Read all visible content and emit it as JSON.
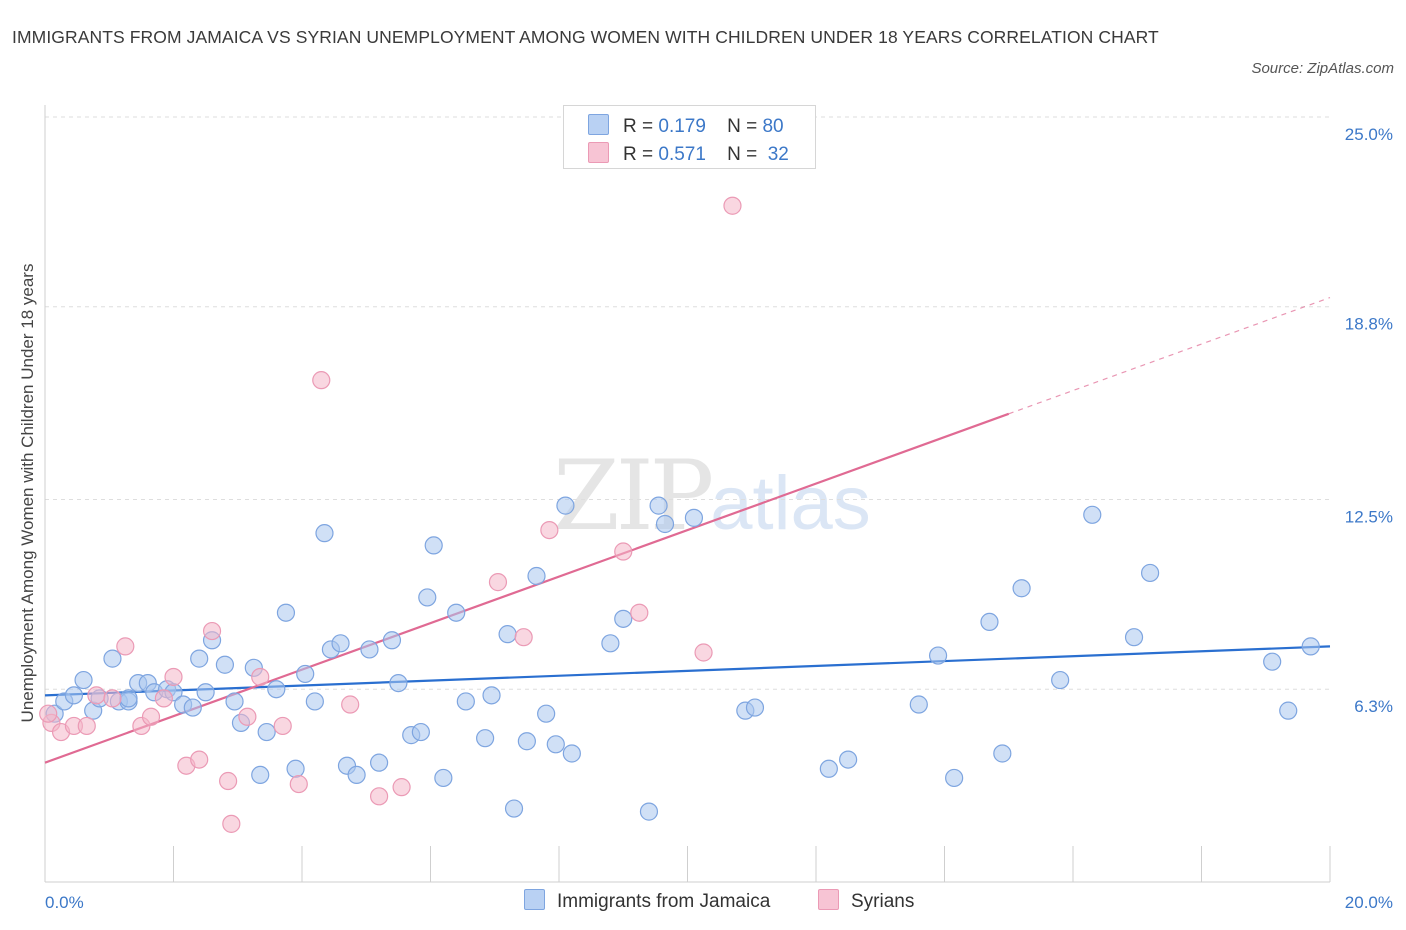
{
  "header": {
    "title": "IMMIGRANTS FROM JAMAICA VS SYRIAN UNEMPLOYMENT AMONG WOMEN WITH CHILDREN UNDER 18 YEARS CORRELATION CHART",
    "source": "Source: ZipAtlas.com"
  },
  "watermark": {
    "zip": "ZIP",
    "atlas": "atlas"
  },
  "legend": {
    "r_label": "R =",
    "n_label": "N =",
    "rows": [
      {
        "r": "0.179",
        "n": "80",
        "color": "#b9d1f3"
      },
      {
        "r": "0.571",
        "n": "32",
        "color": "#f7c4d4"
      }
    ]
  },
  "bottom_legend": [
    {
      "label": "Immigrants from Jamaica",
      "color": "#b9d1f3"
    },
    {
      "label": "Syrians",
      "color": "#f7c4d4"
    }
  ],
  "chart_data": {
    "type": "scatter",
    "title": "IMMIGRANTS FROM JAMAICA VS SYRIAN UNEMPLOYMENT AMONG WOMEN WITH CHILDREN UNDER 18 YEARS CORRELATION CHART",
    "xlabel": "",
    "ylabel": "Unemployment Among Women with Children Under 18 years",
    "xlim": [
      0,
      20
    ],
    "ylim": [
      0,
      25
    ],
    "x_tick_labels": [
      "0.0%",
      "20.0%"
    ],
    "y_tick_values": [
      6.3,
      12.5,
      18.8,
      25.0
    ],
    "y_tick_labels": [
      "6.3%",
      "12.5%",
      "18.8%",
      "25.0%"
    ],
    "grid": true,
    "series": [
      {
        "name": "Immigrants from Jamaica",
        "color": "#a9c6ee",
        "line_color": "#2a6fd0",
        "r": 0.179,
        "n": 80,
        "trend": {
          "x0": 0,
          "y0": 6.1,
          "x1": 20,
          "y1": 7.7
        },
        "points": [
          [
            0.15,
            5.5
          ],
          [
            0.3,
            5.9
          ],
          [
            0.45,
            6.1
          ],
          [
            0.6,
            6.6
          ],
          [
            0.75,
            5.6
          ],
          [
            0.85,
            6.0
          ],
          [
            1.05,
            7.3
          ],
          [
            1.15,
            5.9
          ],
          [
            1.3,
            5.9
          ],
          [
            1.45,
            6.5
          ],
          [
            1.6,
            6.5
          ],
          [
            1.7,
            6.2
          ],
          [
            1.9,
            6.3
          ],
          [
            2.0,
            6.2
          ],
          [
            2.15,
            5.8
          ],
          [
            2.3,
            5.7
          ],
          [
            2.4,
            7.3
          ],
          [
            2.5,
            6.2
          ],
          [
            2.6,
            7.9
          ],
          [
            2.8,
            7.1
          ],
          [
            2.95,
            5.9
          ],
          [
            3.05,
            5.2
          ],
          [
            3.25,
            7.0
          ],
          [
            3.35,
            3.5
          ],
          [
            3.45,
            4.9
          ],
          [
            3.6,
            6.3
          ],
          [
            3.75,
            8.8
          ],
          [
            3.9,
            3.7
          ],
          [
            4.05,
            6.8
          ],
          [
            4.2,
            5.9
          ],
          [
            4.35,
            11.4
          ],
          [
            4.45,
            7.6
          ],
          [
            4.6,
            7.8
          ],
          [
            4.7,
            3.8
          ],
          [
            4.85,
            3.5
          ],
          [
            5.05,
            7.6
          ],
          [
            5.2,
            3.9
          ],
          [
            5.4,
            7.9
          ],
          [
            5.5,
            6.5
          ],
          [
            5.7,
            4.8
          ],
          [
            5.85,
            4.9
          ],
          [
            5.95,
            9.3
          ],
          [
            6.05,
            11.0
          ],
          [
            6.2,
            3.4
          ],
          [
            6.4,
            8.8
          ],
          [
            6.55,
            5.9
          ],
          [
            6.85,
            4.7
          ],
          [
            6.95,
            6.1
          ],
          [
            7.2,
            8.1
          ],
          [
            7.3,
            2.4
          ],
          [
            7.5,
            4.6
          ],
          [
            7.65,
            10.0
          ],
          [
            7.8,
            5.5
          ],
          [
            7.95,
            4.5
          ],
          [
            8.1,
            12.3
          ],
          [
            8.2,
            4.2
          ],
          [
            8.8,
            7.8
          ],
          [
            9.0,
            8.6
          ],
          [
            9.4,
            2.3
          ],
          [
            9.55,
            12.3
          ],
          [
            9.65,
            11.7
          ],
          [
            10.1,
            11.9
          ],
          [
            10.9,
            5.6
          ],
          [
            11.05,
            5.7
          ],
          [
            12.2,
            3.7
          ],
          [
            12.5,
            4.0
          ],
          [
            13.6,
            5.8
          ],
          [
            13.9,
            7.4
          ],
          [
            14.15,
            3.4
          ],
          [
            14.7,
            8.5
          ],
          [
            14.9,
            4.2
          ],
          [
            15.2,
            9.6
          ],
          [
            15.8,
            6.6
          ],
          [
            16.3,
            12.0
          ],
          [
            16.95,
            8.0
          ],
          [
            17.2,
            10.1
          ],
          [
            19.1,
            7.2
          ],
          [
            19.35,
            5.6
          ],
          [
            19.7,
            7.7
          ],
          [
            1.3,
            6.0
          ]
        ]
      },
      {
        "name": "Syrians",
        "color": "#f4b6c9",
        "line_color": "#e06a93",
        "r": 0.571,
        "n": 32,
        "trend": {
          "x0": 0,
          "y0": 3.9,
          "x1": 15.0,
          "y1": 15.3,
          "dashed_to_x": 20.0,
          "dashed_to_y": 19.1
        },
        "points": [
          [
            0.1,
            5.2
          ],
          [
            0.25,
            4.9
          ],
          [
            0.45,
            5.1
          ],
          [
            0.65,
            5.1
          ],
          [
            0.8,
            6.1
          ],
          [
            1.05,
            6.0
          ],
          [
            1.25,
            7.7
          ],
          [
            1.5,
            5.1
          ],
          [
            1.65,
            5.4
          ],
          [
            1.85,
            6.0
          ],
          [
            2.0,
            6.7
          ],
          [
            2.2,
            3.8
          ],
          [
            2.4,
            4.0
          ],
          [
            2.6,
            8.2
          ],
          [
            2.85,
            3.3
          ],
          [
            2.9,
            1.9
          ],
          [
            3.15,
            5.4
          ],
          [
            3.35,
            6.7
          ],
          [
            3.7,
            5.1
          ],
          [
            3.95,
            3.2
          ],
          [
            4.3,
            16.4
          ],
          [
            4.75,
            5.8
          ],
          [
            5.2,
            2.8
          ],
          [
            5.55,
            3.1
          ],
          [
            7.05,
            9.8
          ],
          [
            7.45,
            8.0
          ],
          [
            7.85,
            11.5
          ],
          [
            9.0,
            10.8
          ],
          [
            9.25,
            8.8
          ],
          [
            10.25,
            7.5
          ],
          [
            10.7,
            22.1
          ],
          [
            0.05,
            5.5
          ]
        ]
      }
    ]
  }
}
